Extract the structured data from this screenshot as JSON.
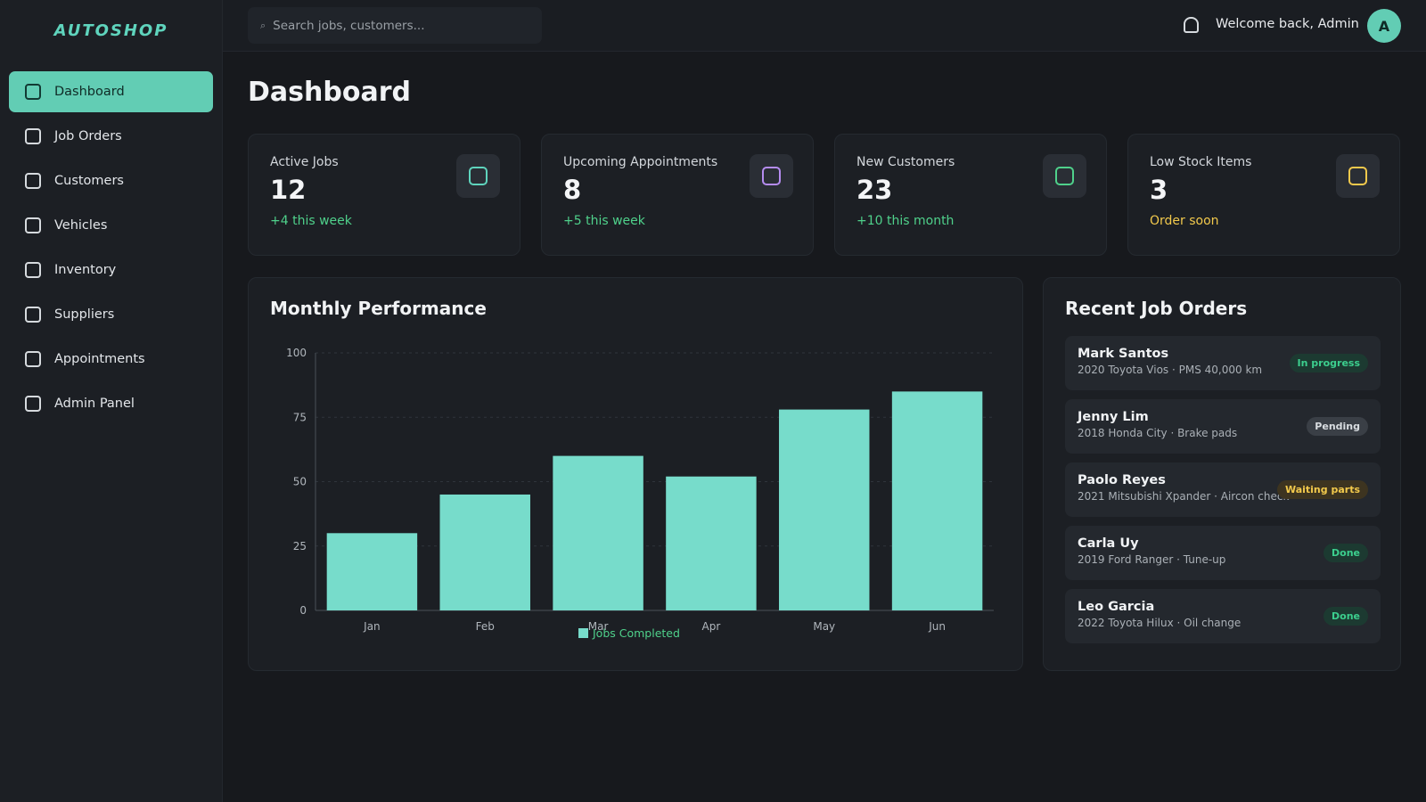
{
  "app": {
    "logo": "AUTOSHOP"
  },
  "sidebar": {
    "items": [
      {
        "label": "Dashboard",
        "active": true
      },
      {
        "label": "Job Orders"
      },
      {
        "label": "Customers"
      },
      {
        "label": "Vehicles"
      },
      {
        "label": "Inventory"
      },
      {
        "label": "Suppliers"
      },
      {
        "label": "Appointments"
      },
      {
        "label": "Admin Panel"
      }
    ]
  },
  "header": {
    "search_placeholder": "Search jobs, customers...",
    "welcome": "Welcome back, Admin",
    "avatar_initial": "A"
  },
  "page": {
    "title": "Dashboard"
  },
  "stats": [
    {
      "label": "Active Jobs",
      "value": "12",
      "delta": "+4 this week",
      "delta_color": "#4fd18b",
      "icon_color": "#5fd4bd"
    },
    {
      "label": "Upcoming Appointments",
      "value": "8",
      "delta": "+5 this week",
      "delta_color": "#4fd18b",
      "icon_color": "#b58cf0"
    },
    {
      "label": "New Customers",
      "value": "23",
      "delta": "+10 this month",
      "delta_color": "#4fd18b",
      "icon_color": "#4fd18b"
    },
    {
      "label": "Low Stock Items",
      "value": "3",
      "delta": "Order soon",
      "delta_color": "#f2c94c",
      "icon_color": "#f2c94c"
    }
  ],
  "performance": {
    "title": "Monthly Performance"
  },
  "chart_data": {
    "type": "bar",
    "categories": [
      "Jan",
      "Feb",
      "Mar",
      "Apr",
      "May",
      "Jun"
    ],
    "series": [
      {
        "name": "Jobs Completed",
        "values": [
          30,
          45,
          60,
          52,
          78,
          85
        ]
      }
    ],
    "ylim": [
      0,
      100
    ],
    "yticks": [
      0,
      25,
      50,
      75,
      100
    ],
    "grid": true,
    "legend": "bottom-center",
    "bar_color": "#77dccb"
  },
  "recent": {
    "title": "Recent Job Orders",
    "items": [
      {
        "name": "Mark Santos",
        "desc": "2020 Toyota Vios · PMS 40,000 km",
        "status": "In progress",
        "status_color": "#3ccf8e",
        "status_bg": "#1c3a31"
      },
      {
        "name": "Jenny Lim",
        "desc": "2018 Honda City · Brake pads",
        "status": "Pending",
        "status_color": "#d9dde1",
        "status_bg": "#3a3f46"
      },
      {
        "name": "Paolo Reyes",
        "desc": "2021 Mitsubishi Xpander · Aircon check",
        "status": "Waiting parts",
        "status_color": "#f2c94c",
        "status_bg": "#3d3420"
      },
      {
        "name": "Carla Uy",
        "desc": "2019 Ford Ranger · Tune-up",
        "status": "Done",
        "status_color": "#3ccf8e",
        "status_bg": "#1c3a31"
      },
      {
        "name": "Leo Garcia",
        "desc": "2022 Toyota Hilux · Oil change",
        "status": "Done",
        "status_color": "#3ccf8e",
        "status_bg": "#1c3a31"
      }
    ]
  }
}
